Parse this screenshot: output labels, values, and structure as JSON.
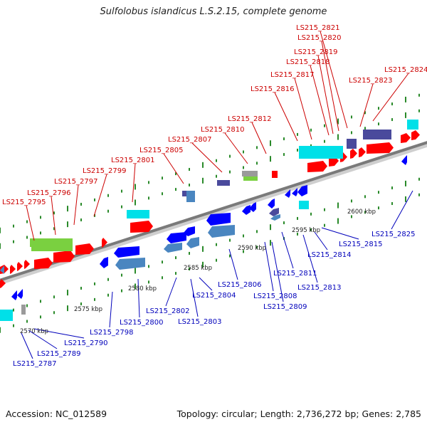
{
  "title": "Sulfolobus islandicus L.S.2.15, complete genome",
  "footer": {
    "accession": "Accession: NC_012589",
    "summary": "Topology: circular; Length: 2,736,272 bp; Genes: 2,785"
  },
  "colors": {
    "axis_dark": "#7a7a7a",
    "axis_light": "#cfcfcf",
    "tick": "#2a8a2a",
    "label_forward": "#cc0000",
    "label_reverse": "#0000bb",
    "red": "#ff0000",
    "blue": "#0000ff",
    "cyan": "#00e0e8",
    "steel": "#4a86c0",
    "navy": "#4a4a9c",
    "green": "#7ad040",
    "grey": "#9a9a9a"
  },
  "scale_labels": [
    "2570 kbp",
    "2575 kbp",
    "2580 kbp",
    "2585 kbp",
    "2590 kbp",
    "2595 kbp",
    "2600 kbp"
  ],
  "forward_labels": [
    "LS215_2795",
    "LS215_2796",
    "LS215_2797",
    "LS215_2799",
    "LS215_2801",
    "LS215_2805",
    "LS215_2807",
    "LS215_2810",
    "LS215_2812",
    "LS215_2816",
    "LS215_2817",
    "LS215_2818",
    "LS215_2819",
    "LS215_2820",
    "LS215_2821",
    "LS215_2823",
    "LS215_2824"
  ],
  "reverse_labels": [
    "LS215_2787",
    "LS215_2789",
    "LS215_2790",
    "LS215_2798",
    "LS215_2800",
    "LS215_2802",
    "LS215_2803",
    "LS215_2804",
    "LS215_2806",
    "LS215_2808",
    "LS215_2809",
    "LS215_2811",
    "LS215_2813",
    "LS215_2814",
    "LS215_2815",
    "LS215_2825"
  ]
}
